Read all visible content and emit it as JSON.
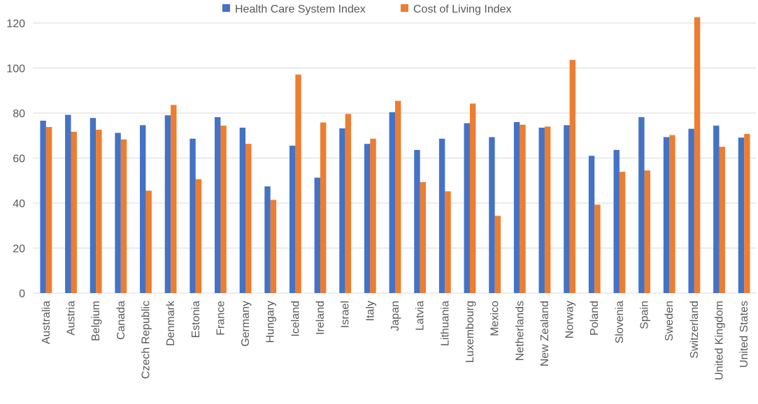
{
  "chart_data": {
    "type": "bar",
    "title": "",
    "xlabel": "",
    "ylabel": "",
    "ylim": [
      0,
      120
    ],
    "yticks": [
      0,
      20,
      40,
      60,
      80,
      100,
      120
    ],
    "grid": true,
    "legend_position": "top-center",
    "categories": [
      "Australia",
      "Austria",
      "Belgium",
      "Canada",
      "Czech Republic",
      "Denmark",
      "Estonia",
      "France",
      "Germany",
      "Hungary",
      "Iceland",
      "Ireland",
      "Israel",
      "Italy",
      "Japan",
      "Latvia",
      "Lithuania",
      "Luxembourg",
      "Mexico",
      "Netherlands",
      "New Zealand",
      "Norway",
      "Poland",
      "Slovenia",
      "Spain",
      "Sweden",
      "Switzerland",
      "United Kingdom",
      "United States"
    ],
    "series": [
      {
        "name": "Health Care System Index",
        "color": "#4472C4",
        "values": [
          76.6,
          79.2,
          77.8,
          71.2,
          74.6,
          79.0,
          68.6,
          78.2,
          73.5,
          47.4,
          65.5,
          51.3,
          73.2,
          66.3,
          80.4,
          63.6,
          68.6,
          75.5,
          69.3,
          76.0,
          73.5,
          74.6,
          61.0,
          63.6,
          78.2,
          69.3,
          73.0,
          74.4,
          69.1
        ]
      },
      {
        "name": "Cost of Living Index",
        "color": "#ED7D31",
        "values": [
          73.8,
          71.7,
          72.6,
          68.3,
          45.5,
          83.6,
          50.6,
          74.4,
          66.3,
          41.4,
          97.1,
          75.8,
          79.6,
          68.6,
          85.4,
          49.3,
          45.2,
          84.2,
          34.3,
          74.8,
          74.0,
          103.6,
          39.3,
          53.9,
          54.5,
          70.2,
          122.6,
          65.0,
          70.7
        ]
      }
    ]
  }
}
